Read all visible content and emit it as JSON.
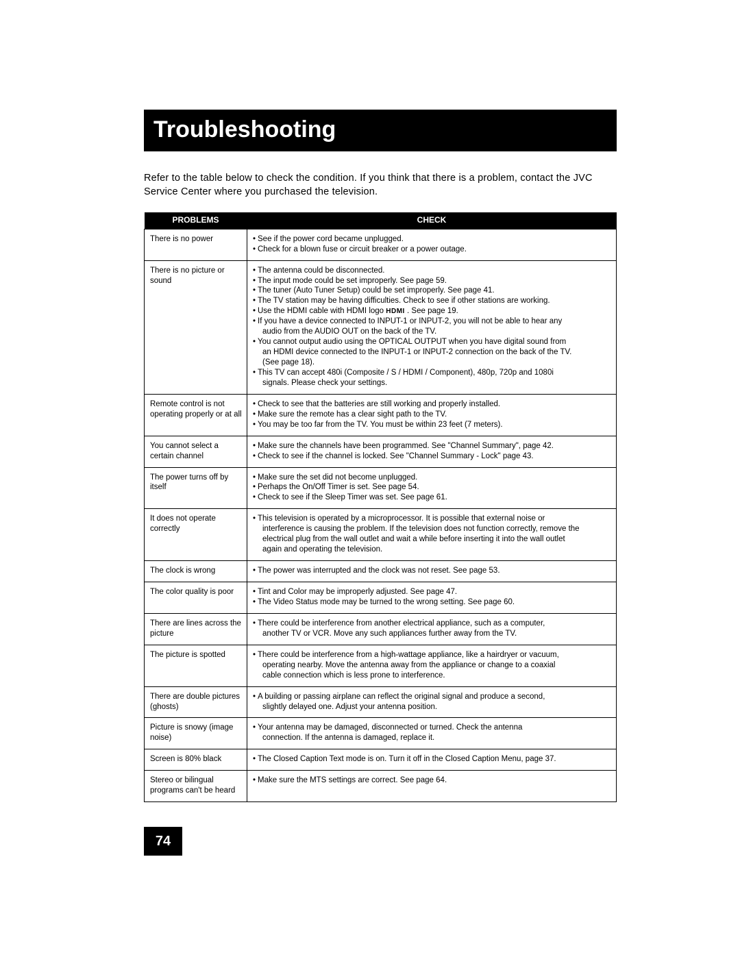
{
  "title": "Troubleshooting",
  "intro": "Refer to the table below to check the condition. If you think that there is a problem, contact the JVC Service Center where you purchased the television.",
  "headers": {
    "problems": "PROBLEMS",
    "check": "CHECK"
  },
  "pageNumber": "74",
  "hdmiLogo": "HDMI",
  "rows": [
    {
      "problem": "There is no power",
      "checks": [
        {
          "t": "bullet",
          "v": "See if the power cord became unplugged."
        },
        {
          "t": "bullet",
          "v": "Check for a blown fuse or circuit breaker or a power outage."
        }
      ]
    },
    {
      "problem": "There is no picture or sound",
      "checks": [
        {
          "t": "bullet",
          "v": "The antenna could be disconnected."
        },
        {
          "t": "bullet",
          "v": "The input mode could be set improperly. See page 59."
        },
        {
          "t": "bullet",
          "v": "The tuner (Auto Tuner Setup) could be set improperly. See page 41."
        },
        {
          "t": "bullet",
          "v": "The TV station may be having difficulties. Check to see if other stations are working."
        },
        {
          "t": "hdmi",
          "pre": "Use the HDMI cable with HDMI logo ",
          "post": " . See page 19."
        },
        {
          "t": "bullet",
          "v": "If you have a device connected to INPUT-1 or INPUT-2, you will not be able to hear any"
        },
        {
          "t": "cont",
          "v": "audio from the AUDIO OUT on the back of the TV."
        },
        {
          "t": "bullet",
          "v": "You cannot output audio using the OPTICAL OUTPUT when you have digital sound from"
        },
        {
          "t": "cont",
          "v": "an HDMI device connected to the INPUT-1 or INPUT-2  connection on the back of the TV."
        },
        {
          "t": "cont",
          "v": "(See page 18)."
        },
        {
          "t": "bullet",
          "v": "This TV can accept 480i (Composite / S / HDMI / Component), 480p, 720p and 1080i"
        },
        {
          "t": "cont",
          "v": "signals.  Please check your settings."
        }
      ]
    },
    {
      "problem": "Remote control is not operating properly or at all",
      "checks": [
        {
          "t": "bullet",
          "v": "Check to see that the batteries are still working and properly installed."
        },
        {
          "t": "bullet",
          "v": "Make sure the remote has a clear sight path to the TV."
        },
        {
          "t": "bullet",
          "v": "You may be too far from the TV. You must be within 23 feet (7 meters)."
        }
      ]
    },
    {
      "problem": "You cannot select a certain channel",
      "checks": [
        {
          "t": "bullet",
          "v": "Make sure the channels have been programmed. See \"Channel Summary\", page 42."
        },
        {
          "t": "bullet",
          "v": "Check to see if the channel is locked. See \"Channel Summary - Lock\" page 43."
        }
      ]
    },
    {
      "problem": "The power turns off by itself",
      "checks": [
        {
          "t": "bullet",
          "v": "Make sure the set did not become unplugged."
        },
        {
          "t": "bullet",
          "v": "Perhaps the On/Off Timer is set. See page 54."
        },
        {
          "t": "bullet",
          "v": "Check to see if the Sleep Timer was set. See page 61."
        }
      ]
    },
    {
      "problem": "It does not operate correctly",
      "checks": [
        {
          "t": "bullet",
          "v": "This television is operated by a microprocessor.  It is possible that external noise or"
        },
        {
          "t": "cont",
          "v": "interference is causing the problem.  If the television does not function correctly, remove the"
        },
        {
          "t": "cont",
          "v": "electrical plug from the wall outlet and wait a while before inserting it into the wall outlet"
        },
        {
          "t": "cont",
          "v": "again and operating the television."
        }
      ]
    },
    {
      "problem": "The clock is wrong",
      "checks": [
        {
          "t": "bullet",
          "v": "The power was interrupted and the clock was not reset. See page 53."
        }
      ]
    },
    {
      "problem": "The color quality is poor",
      "checks": [
        {
          "t": "bullet",
          "v": "Tint and Color may be improperly adjusted. See page 47."
        },
        {
          "t": "bullet",
          "v": "The Video Status mode may be turned to the wrong setting. See page 60."
        }
      ]
    },
    {
      "problem": "There are lines across the picture",
      "checks": [
        {
          "t": "bullet",
          "v": "There could be interference from another electrical appliance, such as a computer,"
        },
        {
          "t": "cont",
          "v": "another TV or VCR. Move any such appliances further away from the TV."
        }
      ]
    },
    {
      "problem": "The picture is spotted",
      "checks": [
        {
          "t": "bullet",
          "v": "There could be interference from a high-wattage appliance, like a hairdryer or vacuum,"
        },
        {
          "t": "cont",
          "v": "operating nearby.  Move the antenna away from the appliance or change to a coaxial"
        },
        {
          "t": "cont",
          "v": "cable connection which is less prone to interference."
        }
      ]
    },
    {
      "problem": "There are double pictures (ghosts)",
      "checks": [
        {
          "t": "bullet",
          "v": "A building or passing airplane can reflect the original signal and produce a second,"
        },
        {
          "t": "cont",
          "v": "slightly delayed one.  Adjust your antenna position."
        }
      ]
    },
    {
      "problem": "Picture is snowy (image noise)",
      "checks": [
        {
          "t": "bullet",
          "v": "Your antenna may be damaged, disconnected or turned. Check the antenna"
        },
        {
          "t": "cont",
          "v": "connection. If the antenna is damaged, replace it."
        }
      ]
    },
    {
      "problem": "Screen is 80% black",
      "checks": [
        {
          "t": "bullet",
          "v": "The Closed Caption Text mode is on. Turn it off in the Closed Caption Menu, page 37."
        }
      ]
    },
    {
      "problem": "Stereo or bilingual programs can't be heard",
      "checks": [
        {
          "t": "bullet",
          "v": "Make sure the MTS settings are correct. See page 64."
        }
      ]
    }
  ]
}
